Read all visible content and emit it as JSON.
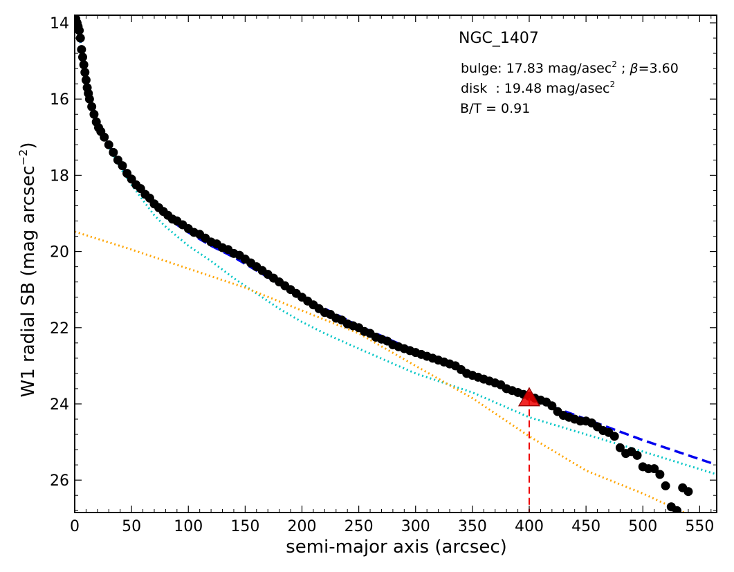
{
  "chart_data": {
    "type": "scatter",
    "title": "NGC_1407",
    "xlabel": "semi-major axis (arcsec)",
    "ylabel": "W1 radial SB (mag arcsec",
    "ylabel_sup": "−2",
    "ylabel_close": ")",
    "xlim": [
      0,
      565
    ],
    "ylim": [
      13.8,
      26.85
    ],
    "y_inverted": true,
    "x_ticks": [
      0,
      50,
      100,
      150,
      200,
      250,
      300,
      350,
      400,
      450,
      500,
      550
    ],
    "y_ticks": [
      14,
      16,
      18,
      20,
      22,
      24,
      26
    ],
    "grid": false,
    "annotations": {
      "bulge": {
        "prefix": "bulge: 17.83 mag/asec",
        "sup": "2",
        "mid": " ; ",
        "beta": "β",
        "suffix": "=3.60"
      },
      "disk": {
        "prefix": "disk  : 19.48 mag/asec",
        "sup": "2"
      },
      "bt": "B/T = 0.91"
    },
    "series": [
      {
        "kind": "data_points",
        "color": "#000000",
        "points": [
          [
            1,
            13.9
          ],
          [
            2,
            14.0
          ],
          [
            3,
            14.1
          ],
          [
            4,
            14.2
          ],
          [
            5,
            14.4
          ],
          [
            6,
            14.7
          ],
          [
            7,
            14.9
          ],
          [
            8,
            15.1
          ],
          [
            9,
            15.3
          ],
          [
            10,
            15.5
          ],
          [
            11,
            15.7
          ],
          [
            12,
            15.85
          ],
          [
            13,
            16.0
          ],
          [
            15,
            16.2
          ],
          [
            17,
            16.4
          ],
          [
            19,
            16.6
          ],
          [
            21,
            16.75
          ],
          [
            23,
            16.85
          ],
          [
            26,
            17.0
          ],
          [
            30,
            17.2
          ],
          [
            34,
            17.4
          ],
          [
            38,
            17.6
          ],
          [
            42,
            17.75
          ],
          [
            46,
            17.95
          ],
          [
            50,
            18.1
          ],
          [
            54,
            18.25
          ],
          [
            58,
            18.35
          ],
          [
            62,
            18.5
          ],
          [
            66,
            18.6
          ],
          [
            70,
            18.75
          ],
          [
            74,
            18.85
          ],
          [
            78,
            18.95
          ],
          [
            82,
            19.05
          ],
          [
            86,
            19.15
          ],
          [
            90,
            19.2
          ],
          [
            95,
            19.3
          ],
          [
            100,
            19.4
          ],
          [
            105,
            19.5
          ],
          [
            110,
            19.55
          ],
          [
            115,
            19.65
          ],
          [
            120,
            19.75
          ],
          [
            125,
            19.8
          ],
          [
            130,
            19.9
          ],
          [
            135,
            19.95
          ],
          [
            140,
            20.05
          ],
          [
            145,
            20.1
          ],
          [
            150,
            20.2
          ],
          [
            155,
            20.3
          ],
          [
            160,
            20.4
          ],
          [
            165,
            20.5
          ],
          [
            170,
            20.6
          ],
          [
            175,
            20.7
          ],
          [
            180,
            20.8
          ],
          [
            185,
            20.9
          ],
          [
            190,
            21.0
          ],
          [
            195,
            21.1
          ],
          [
            200,
            21.2
          ],
          [
            205,
            21.3
          ],
          [
            210,
            21.4
          ],
          [
            215,
            21.5
          ],
          [
            220,
            21.6
          ],
          [
            225,
            21.65
          ],
          [
            230,
            21.75
          ],
          [
            235,
            21.8
          ],
          [
            240,
            21.9
          ],
          [
            245,
            21.95
          ],
          [
            250,
            22.0
          ],
          [
            255,
            22.1
          ],
          [
            260,
            22.15
          ],
          [
            265,
            22.25
          ],
          [
            270,
            22.3
          ],
          [
            275,
            22.35
          ],
          [
            280,
            22.45
          ],
          [
            285,
            22.5
          ],
          [
            290,
            22.55
          ],
          [
            295,
            22.6
          ],
          [
            300,
            22.65
          ],
          [
            305,
            22.7
          ],
          [
            310,
            22.75
          ],
          [
            315,
            22.8
          ],
          [
            320,
            22.85
          ],
          [
            325,
            22.9
          ],
          [
            330,
            22.95
          ],
          [
            335,
            23.0
          ],
          [
            340,
            23.1
          ],
          [
            345,
            23.2
          ],
          [
            350,
            23.25
          ],
          [
            355,
            23.3
          ],
          [
            360,
            23.35
          ],
          [
            365,
            23.4
          ],
          [
            370,
            23.45
          ],
          [
            375,
            23.5
          ],
          [
            380,
            23.6
          ],
          [
            385,
            23.65
          ],
          [
            390,
            23.7
          ],
          [
            395,
            23.75
          ],
          [
            400,
            23.8
          ],
          [
            405,
            23.85
          ],
          [
            410,
            23.9
          ],
          [
            415,
            23.95
          ],
          [
            420,
            24.05
          ],
          [
            425,
            24.2
          ],
          [
            430,
            24.3
          ],
          [
            435,
            24.35
          ],
          [
            440,
            24.4
          ],
          [
            445,
            24.45
          ],
          [
            450,
            24.45
          ],
          [
            455,
            24.5
          ],
          [
            460,
            24.6
          ],
          [
            465,
            24.7
          ],
          [
            470,
            24.75
          ],
          [
            475,
            24.85
          ],
          [
            480,
            25.15
          ],
          [
            485,
            25.3
          ],
          [
            490,
            25.25
          ],
          [
            495,
            25.35
          ],
          [
            500,
            25.65
          ],
          [
            505,
            25.7
          ],
          [
            510,
            25.7
          ],
          [
            515,
            25.85
          ],
          [
            520,
            26.15
          ],
          [
            525,
            26.7
          ],
          [
            530,
            26.8
          ],
          [
            535,
            26.2
          ],
          [
            540,
            26.3
          ]
        ]
      },
      {
        "kind": "total_fit",
        "style": "dashed",
        "color": "#0000ee",
        "points": [
          [
            2,
            13.9
          ],
          [
            5,
            14.5
          ],
          [
            10,
            15.4
          ],
          [
            15,
            16.1
          ],
          [
            20,
            16.6
          ],
          [
            30,
            17.2
          ],
          [
            40,
            17.7
          ],
          [
            50,
            18.15
          ],
          [
            60,
            18.5
          ],
          [
            70,
            18.8
          ],
          [
            80,
            19.05
          ],
          [
            90,
            19.3
          ],
          [
            100,
            19.5
          ],
          [
            120,
            19.85
          ],
          [
            140,
            20.15
          ],
          [
            160,
            20.5
          ],
          [
            180,
            20.85
          ],
          [
            200,
            21.2
          ],
          [
            220,
            21.5
          ],
          [
            250,
            21.95
          ],
          [
            280,
            22.35
          ],
          [
            300,
            22.6
          ],
          [
            330,
            22.95
          ],
          [
            350,
            23.2
          ],
          [
            380,
            23.6
          ],
          [
            400,
            23.85
          ],
          [
            450,
            24.4
          ],
          [
            500,
            24.95
          ],
          [
            560,
            25.55
          ]
        ]
      },
      {
        "kind": "bulge",
        "style": "dotted",
        "color": "#00c5c5",
        "points": [
          [
            2,
            13.95
          ],
          [
            5,
            14.5
          ],
          [
            10,
            15.4
          ],
          [
            15,
            16.1
          ],
          [
            20,
            16.6
          ],
          [
            30,
            17.25
          ],
          [
            40,
            17.8
          ],
          [
            50,
            18.25
          ],
          [
            60,
            18.65
          ],
          [
            70,
            19.05
          ],
          [
            80,
            19.35
          ],
          [
            100,
            19.85
          ],
          [
            120,
            20.25
          ],
          [
            140,
            20.7
          ],
          [
            160,
            21.1
          ],
          [
            180,
            21.5
          ],
          [
            200,
            21.85
          ],
          [
            220,
            22.15
          ],
          [
            250,
            22.55
          ],
          [
            300,
            23.2
          ],
          [
            350,
            23.7
          ],
          [
            400,
            24.35
          ],
          [
            450,
            24.8
          ],
          [
            500,
            25.25
          ],
          [
            565,
            25.85
          ]
        ]
      },
      {
        "kind": "disk",
        "style": "dotted",
        "color": "#ffa500",
        "points": [
          [
            0,
            19.48
          ],
          [
            50,
            19.95
          ],
          [
            100,
            20.45
          ],
          [
            150,
            20.95
          ],
          [
            200,
            21.55
          ],
          [
            250,
            22.15
          ],
          [
            300,
            23.0
          ],
          [
            350,
            23.85
          ],
          [
            400,
            24.85
          ],
          [
            450,
            25.75
          ],
          [
            500,
            26.35
          ],
          [
            540,
            26.9
          ]
        ]
      }
    ],
    "transition_marker": {
      "x": 400,
      "y": 23.85,
      "color": "#ee0000",
      "marker": "triangle"
    }
  }
}
